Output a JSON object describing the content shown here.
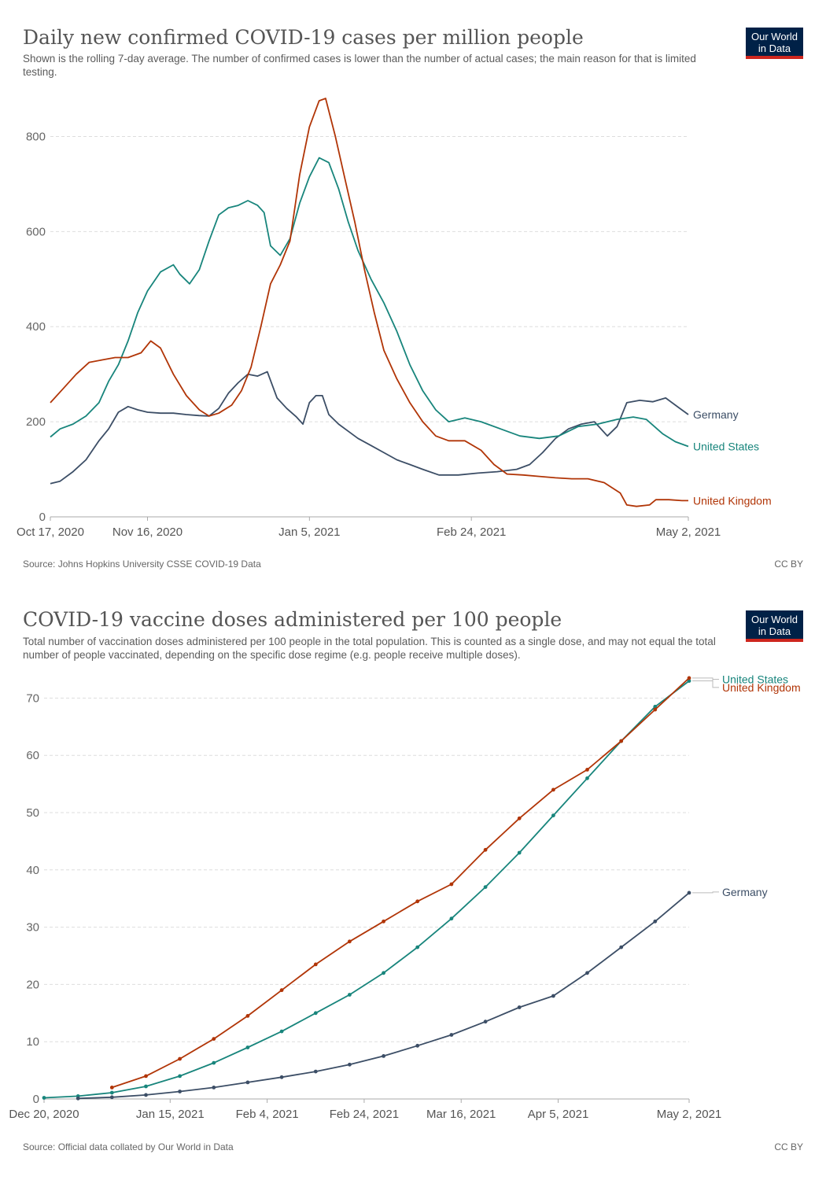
{
  "brand": {
    "logo_line1": "Our World",
    "logo_line2": "in Data",
    "colors": {
      "navy": "#002147",
      "red": "#ce261e"
    }
  },
  "chart_data": [
    {
      "type": "line",
      "title": "Daily new confirmed COVID-19 cases per million people",
      "subtitle": "Shown is the rolling 7-day average. The number of confirmed cases is lower than the number of actual cases; the main reason for that is limited testing.",
      "source": "Source: Johns Hopkins University CSSE COVID-19 Data",
      "license": "CC BY",
      "x_range": [
        "2020-10-17",
        "2021-05-02"
      ],
      "ylim": [
        0,
        900
      ],
      "yticks": [
        0,
        200,
        400,
        600,
        800
      ],
      "xtick_labels": [
        {
          "date": "2020-10-17",
          "label": "Oct 17, 2020"
        },
        {
          "date": "2020-11-16",
          "label": "Nov 16, 2020"
        },
        {
          "date": "2021-01-05",
          "label": "Jan 5, 2021"
        },
        {
          "date": "2021-02-24",
          "label": "Feb 24, 2021"
        },
        {
          "date": "2021-05-02",
          "label": "May 2, 2021"
        }
      ],
      "grid": true,
      "series": [
        {
          "name": "Germany",
          "color": "#3c4e66",
          "points": [
            [
              "2020-10-17",
              70
            ],
            [
              "2020-10-20",
              75
            ],
            [
              "2020-10-24",
              95
            ],
            [
              "2020-10-28",
              120
            ],
            [
              "2020-11-01",
              160
            ],
            [
              "2020-11-04",
              185
            ],
            [
              "2020-11-07",
              220
            ],
            [
              "2020-11-10",
              232
            ],
            [
              "2020-11-13",
              225
            ],
            [
              "2020-11-16",
              220
            ],
            [
              "2020-11-20",
              218
            ],
            [
              "2020-11-24",
              218
            ],
            [
              "2020-11-28",
              215
            ],
            [
              "2020-12-02",
              213
            ],
            [
              "2020-12-05",
              212
            ],
            [
              "2020-12-08",
              228
            ],
            [
              "2020-12-11",
              260
            ],
            [
              "2020-12-14",
              282
            ],
            [
              "2020-12-17",
              300
            ],
            [
              "2020-12-20",
              296
            ],
            [
              "2020-12-23",
              305
            ],
            [
              "2020-12-26",
              250
            ],
            [
              "2020-12-29",
              228
            ],
            [
              "2021-01-01",
              210
            ],
            [
              "2021-01-03",
              195
            ],
            [
              "2021-01-05",
              240
            ],
            [
              "2021-01-07",
              255
            ],
            [
              "2021-01-09",
              255
            ],
            [
              "2021-01-11",
              215
            ],
            [
              "2021-01-14",
              195
            ],
            [
              "2021-01-17",
              180
            ],
            [
              "2021-01-20",
              165
            ],
            [
              "2021-01-24",
              150
            ],
            [
              "2021-01-28",
              135
            ],
            [
              "2021-02-01",
              120
            ],
            [
              "2021-02-05",
              110
            ],
            [
              "2021-02-09",
              100
            ],
            [
              "2021-02-14",
              88
            ],
            [
              "2021-02-20",
              88
            ],
            [
              "2021-02-26",
              92
            ],
            [
              "2021-03-04",
              95
            ],
            [
              "2021-03-10",
              100
            ],
            [
              "2021-03-14",
              110
            ],
            [
              "2021-03-18",
              135
            ],
            [
              "2021-03-22",
              165
            ],
            [
              "2021-03-26",
              185
            ],
            [
              "2021-03-30",
              195
            ],
            [
              "2021-04-03",
              200
            ],
            [
              "2021-04-07",
              170
            ],
            [
              "2021-04-10",
              190
            ],
            [
              "2021-04-13",
              240
            ],
            [
              "2021-04-17",
              245
            ],
            [
              "2021-04-21",
              242
            ],
            [
              "2021-04-25",
              250
            ],
            [
              "2021-04-29",
              230
            ],
            [
              "2021-05-02",
              215
            ]
          ]
        },
        {
          "name": "United States",
          "color": "#18857c",
          "points": [
            [
              "2020-10-17",
              168
            ],
            [
              "2020-10-20",
              185
            ],
            [
              "2020-10-24",
              195
            ],
            [
              "2020-10-28",
              212
            ],
            [
              "2020-11-01",
              240
            ],
            [
              "2020-11-04",
              285
            ],
            [
              "2020-11-07",
              320
            ],
            [
              "2020-11-10",
              370
            ],
            [
              "2020-11-13",
              430
            ],
            [
              "2020-11-16",
              475
            ],
            [
              "2020-11-20",
              515
            ],
            [
              "2020-11-24",
              530
            ],
            [
              "2020-11-26",
              510
            ],
            [
              "2020-11-29",
              490
            ],
            [
              "2020-12-02",
              520
            ],
            [
              "2020-12-05",
              580
            ],
            [
              "2020-12-08",
              635
            ],
            [
              "2020-12-11",
              650
            ],
            [
              "2020-12-14",
              655
            ],
            [
              "2020-12-17",
              665
            ],
            [
              "2020-12-20",
              655
            ],
            [
              "2020-12-22",
              640
            ],
            [
              "2020-12-24",
              570
            ],
            [
              "2020-12-27",
              550
            ],
            [
              "2020-12-30",
              585
            ],
            [
              "2021-01-02",
              660
            ],
            [
              "2021-01-05",
              715
            ],
            [
              "2021-01-08",
              755
            ],
            [
              "2021-01-11",
              745
            ],
            [
              "2021-01-14",
              690
            ],
            [
              "2021-01-17",
              620
            ],
            [
              "2021-01-20",
              560
            ],
            [
              "2021-01-24",
              500
            ],
            [
              "2021-01-28",
              450
            ],
            [
              "2021-02-01",
              390
            ],
            [
              "2021-02-05",
              320
            ],
            [
              "2021-02-09",
              265
            ],
            [
              "2021-02-13",
              225
            ],
            [
              "2021-02-17",
              200
            ],
            [
              "2021-02-22",
              208
            ],
            [
              "2021-02-27",
              200
            ],
            [
              "2021-03-05",
              185
            ],
            [
              "2021-03-11",
              170
            ],
            [
              "2021-03-17",
              165
            ],
            [
              "2021-03-23",
              170
            ],
            [
              "2021-03-29",
              190
            ],
            [
              "2021-04-04",
              195
            ],
            [
              "2021-04-10",
              205
            ],
            [
              "2021-04-15",
              210
            ],
            [
              "2021-04-19",
              205
            ],
            [
              "2021-04-24",
              175
            ],
            [
              "2021-04-28",
              158
            ],
            [
              "2021-05-02",
              148
            ]
          ]
        },
        {
          "name": "United Kingdom",
          "color": "#b13507",
          "points": [
            [
              "2020-10-17",
              240
            ],
            [
              "2020-10-21",
              270
            ],
            [
              "2020-10-25",
              300
            ],
            [
              "2020-10-29",
              325
            ],
            [
              "2020-11-02",
              330
            ],
            [
              "2020-11-06",
              335
            ],
            [
              "2020-11-10",
              335
            ],
            [
              "2020-11-14",
              345
            ],
            [
              "2020-11-17",
              370
            ],
            [
              "2020-11-20",
              355
            ],
            [
              "2020-11-24",
              300
            ],
            [
              "2020-11-28",
              255
            ],
            [
              "2020-12-02",
              225
            ],
            [
              "2020-12-05",
              212
            ],
            [
              "2020-12-08",
              218
            ],
            [
              "2020-12-12",
              235
            ],
            [
              "2020-12-15",
              265
            ],
            [
              "2020-12-18",
              315
            ],
            [
              "2020-12-21",
              400
            ],
            [
              "2020-12-24",
              490
            ],
            [
              "2020-12-27",
              530
            ],
            [
              "2020-12-30",
              580
            ],
            [
              "2021-01-02",
              720
            ],
            [
              "2021-01-05",
              820
            ],
            [
              "2021-01-08",
              875
            ],
            [
              "2021-01-10",
              880
            ],
            [
              "2021-01-13",
              800
            ],
            [
              "2021-01-16",
              710
            ],
            [
              "2021-01-19",
              620
            ],
            [
              "2021-01-22",
              520
            ],
            [
              "2021-01-25",
              430
            ],
            [
              "2021-01-28",
              350
            ],
            [
              "2021-02-01",
              290
            ],
            [
              "2021-02-05",
              240
            ],
            [
              "2021-02-09",
              200
            ],
            [
              "2021-02-13",
              170
            ],
            [
              "2021-02-17",
              160
            ],
            [
              "2021-02-22",
              160
            ],
            [
              "2021-02-27",
              140
            ],
            [
              "2021-03-03",
              110
            ],
            [
              "2021-03-07",
              90
            ],
            [
              "2021-03-12",
              88
            ],
            [
              "2021-03-17",
              85
            ],
            [
              "2021-03-22",
              82
            ],
            [
              "2021-03-27",
              80
            ],
            [
              "2021-04-01",
              80
            ],
            [
              "2021-04-06",
              72
            ],
            [
              "2021-04-11",
              50
            ],
            [
              "2021-04-13",
              25
            ],
            [
              "2021-04-16",
              22
            ],
            [
              "2021-04-20",
              25
            ],
            [
              "2021-04-22",
              36
            ],
            [
              "2021-04-26",
              36
            ],
            [
              "2021-04-30",
              34
            ],
            [
              "2021-05-02",
              34
            ]
          ]
        }
      ]
    },
    {
      "type": "line",
      "title": "COVID-19 vaccine doses administered per 100 people",
      "subtitle": "Total number of vaccination doses administered per 100 people in the total population. This is counted as a single dose, and may not equal the total number of people vaccinated, depending on the specific dose regime (e.g. people receive multiple doses).",
      "source": "Source: Official data collated by Our World in Data",
      "license": "CC BY",
      "x_range": [
        "2020-12-20",
        "2021-05-02"
      ],
      "ylim": [
        0,
        75
      ],
      "yticks": [
        0,
        10,
        20,
        30,
        40,
        50,
        60,
        70
      ],
      "xtick_labels": [
        {
          "date": "2020-12-20",
          "label": "Dec 20, 2020"
        },
        {
          "date": "2021-01-15",
          "label": "Jan 15, 2021"
        },
        {
          "date": "2021-02-04",
          "label": "Feb 4, 2021"
        },
        {
          "date": "2021-02-24",
          "label": "Feb 24, 2021"
        },
        {
          "date": "2021-03-16",
          "label": "Mar 16, 2021"
        },
        {
          "date": "2021-04-05",
          "label": "Apr 5, 2021"
        },
        {
          "date": "2021-05-02",
          "label": "May 2, 2021"
        }
      ],
      "grid": true,
      "series": [
        {
          "name": "United States",
          "color": "#18857c",
          "points": [
            [
              "2020-12-20",
              0.2
            ],
            [
              "2020-12-27",
              0.5
            ],
            [
              "2021-01-03",
              1.1
            ],
            [
              "2021-01-10",
              2.2
            ],
            [
              "2021-01-17",
              4.0
            ],
            [
              "2021-01-24",
              6.3
            ],
            [
              "2021-01-31",
              9.0
            ],
            [
              "2021-02-07",
              11.8
            ],
            [
              "2021-02-14",
              15.0
            ],
            [
              "2021-02-21",
              18.2
            ],
            [
              "2021-02-28",
              22.0
            ],
            [
              "2021-03-07",
              26.5
            ],
            [
              "2021-03-14",
              31.5
            ],
            [
              "2021-03-21",
              37.0
            ],
            [
              "2021-03-28",
              43.0
            ],
            [
              "2021-04-04",
              49.5
            ],
            [
              "2021-04-11",
              56.0
            ],
            [
              "2021-04-18",
              62.5
            ],
            [
              "2021-04-25",
              68.5
            ],
            [
              "2021-05-02",
              73.0
            ]
          ]
        },
        {
          "name": "United Kingdom",
          "color": "#b13507",
          "points": [
            [
              "2021-01-03",
              2.0
            ],
            [
              "2021-01-10",
              4.0
            ],
            [
              "2021-01-17",
              7.0
            ],
            [
              "2021-01-24",
              10.5
            ],
            [
              "2021-01-31",
              14.5
            ],
            [
              "2021-02-07",
              19.0
            ],
            [
              "2021-02-14",
              23.5
            ],
            [
              "2021-02-21",
              27.5
            ],
            [
              "2021-02-28",
              31.0
            ],
            [
              "2021-03-07",
              34.5
            ],
            [
              "2021-03-14",
              37.5
            ],
            [
              "2021-03-21",
              43.5
            ],
            [
              "2021-03-28",
              49.0
            ],
            [
              "2021-04-04",
              54.0
            ],
            [
              "2021-04-11",
              57.5
            ],
            [
              "2021-04-18",
              62.5
            ],
            [
              "2021-04-25",
              68.0
            ],
            [
              "2021-05-02",
              73.5
            ]
          ]
        },
        {
          "name": "Germany",
          "color": "#3c4e66",
          "points": [
            [
              "2020-12-27",
              0.1
            ],
            [
              "2021-01-03",
              0.3
            ],
            [
              "2021-01-10",
              0.7
            ],
            [
              "2021-01-17",
              1.3
            ],
            [
              "2021-01-24",
              2.0
            ],
            [
              "2021-01-31",
              2.9
            ],
            [
              "2021-02-07",
              3.8
            ],
            [
              "2021-02-14",
              4.8
            ],
            [
              "2021-02-21",
              6.0
            ],
            [
              "2021-02-28",
              7.5
            ],
            [
              "2021-03-07",
              9.3
            ],
            [
              "2021-03-14",
              11.2
            ],
            [
              "2021-03-21",
              13.5
            ],
            [
              "2021-03-28",
              16.0
            ],
            [
              "2021-04-04",
              18.0
            ],
            [
              "2021-04-11",
              22.0
            ],
            [
              "2021-04-18",
              26.5
            ],
            [
              "2021-04-25",
              31.0
            ],
            [
              "2021-05-02",
              36.0
            ]
          ]
        }
      ]
    }
  ]
}
